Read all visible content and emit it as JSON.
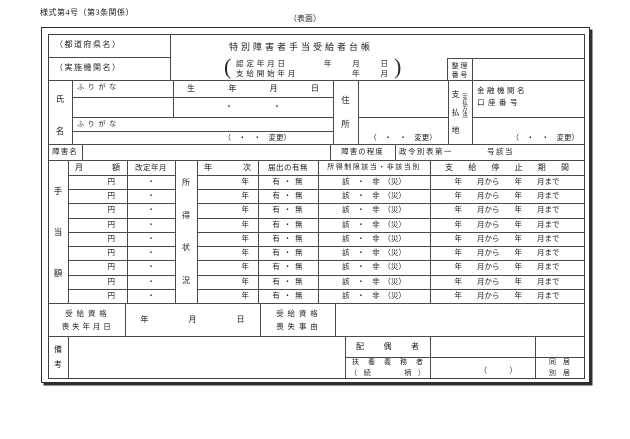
{
  "page": {
    "form_number": "様式第4号（第3条関係）",
    "side_label": "（表面）"
  },
  "header": {
    "prefecture": "（都道府県名）",
    "agency": "（実施機関名）",
    "title": "特別障害者手当受給者台帳",
    "bracket_open": "(",
    "bracket_close": ")",
    "certified_date_label": "認 定 年 月 日",
    "certified_date_value": "年　月　日",
    "payment_start_label": "支 給 開 始 年 月",
    "payment_start_value": "年　月",
    "ref_number_line1": "整 理",
    "ref_number_line2": "番 号"
  },
  "person": {
    "last_name_label": "氏",
    "first_name_label": "名",
    "furigana_top": "ふ り が な",
    "furigana_bottom": "ふ り が な",
    "birth_header": "生年月日",
    "birth_value": "・　・",
    "name_change": "（　・　・　変更）",
    "address_label": [
      "住",
      "所"
    ],
    "address_change": "（　・　・　変更）",
    "payment_label": [
      "支",
      "払",
      "地"
    ],
    "payment_method_note": "（支払方法）",
    "bank_name": "金融機関名",
    "account_number": "口座番号",
    "bank_change": "（　・　・　変更）"
  },
  "disability": {
    "name_label": "障害名",
    "degree_label": "障害の程度",
    "law_text": "政令別表第一",
    "law_suffix": "号該当"
  },
  "table": {
    "left_label": [
      "手",
      "当",
      "額"
    ],
    "income_status_label": [
      "所",
      "得",
      "状",
      "況"
    ],
    "headers": {
      "monthly_amount": "月額",
      "revision_date": "改定年月",
      "year": "年次",
      "report_status": "届出の有無",
      "income_limit": "所得制限該当・非該当別",
      "suspension_period": "支給停止期間"
    },
    "rows": [
      {
        "amount": "円",
        "revision": "・",
        "year": "年",
        "report": "有 ・ 無",
        "income": "該　・　非　（災）",
        "suspension": "年　　月から　　年　　月まで"
      },
      {
        "amount": "円",
        "revision": "・",
        "year": "年",
        "report": "有 ・ 無",
        "income": "該　・　非　（災）",
        "suspension": "年　　月から　　年　　月まで"
      },
      {
        "amount": "円",
        "revision": "・",
        "year": "年",
        "report": "有 ・ 無",
        "income": "該　・　非　（災）",
        "suspension": "年　　月から　　年　　月まで"
      },
      {
        "amount": "円",
        "revision": "・",
        "year": "年",
        "report": "有 ・ 無",
        "income": "該　・　非　（災）",
        "suspension": "年　　月から　　年　　月まで"
      },
      {
        "amount": "円",
        "revision": "・",
        "year": "年",
        "report": "有 ・ 無",
        "income": "該　・　非　（災）",
        "suspension": "年　　月から　　年　　月まで"
      },
      {
        "amount": "円",
        "revision": "・",
        "year": "年",
        "report": "有 ・ 無",
        "income": "該　・　非　（災）",
        "suspension": "年　　月から　　年　　月まで"
      },
      {
        "amount": "円",
        "revision": "・",
        "year": "年",
        "report": "有 ・ 無",
        "income": "該　・　非　（災）",
        "suspension": "年　　月から　　年　　月まで"
      },
      {
        "amount": "円",
        "revision": "・",
        "year": "年",
        "report": "有 ・ 無",
        "income": "該　・　非　（災）",
        "suspension": "年　　月から　　年　　月まで"
      },
      {
        "amount": "円",
        "revision": "・",
        "year": "年",
        "report": "有 ・ 無",
        "income": "該　・　非　（災）",
        "suspension": "年　　月から　　年　　月まで"
      }
    ]
  },
  "loss": {
    "label_line1": "受 給 資 格",
    "label_line2": "喪 失 年 月 日",
    "date_value": "年　　　　　月　　　　　日",
    "reason_line1": "受 給 資 格",
    "reason_line2": "喪 失 事 由"
  },
  "notes": {
    "label": [
      "備",
      "考"
    ]
  },
  "family": {
    "spouse_label": "配偶者",
    "dependent_line1": "扶養義務者",
    "dependent_line2": "（続　　柄）",
    "dependent_value": "（　　　）",
    "cohabit_line1": "同　居",
    "cohabit_line2": "別　居"
  }
}
